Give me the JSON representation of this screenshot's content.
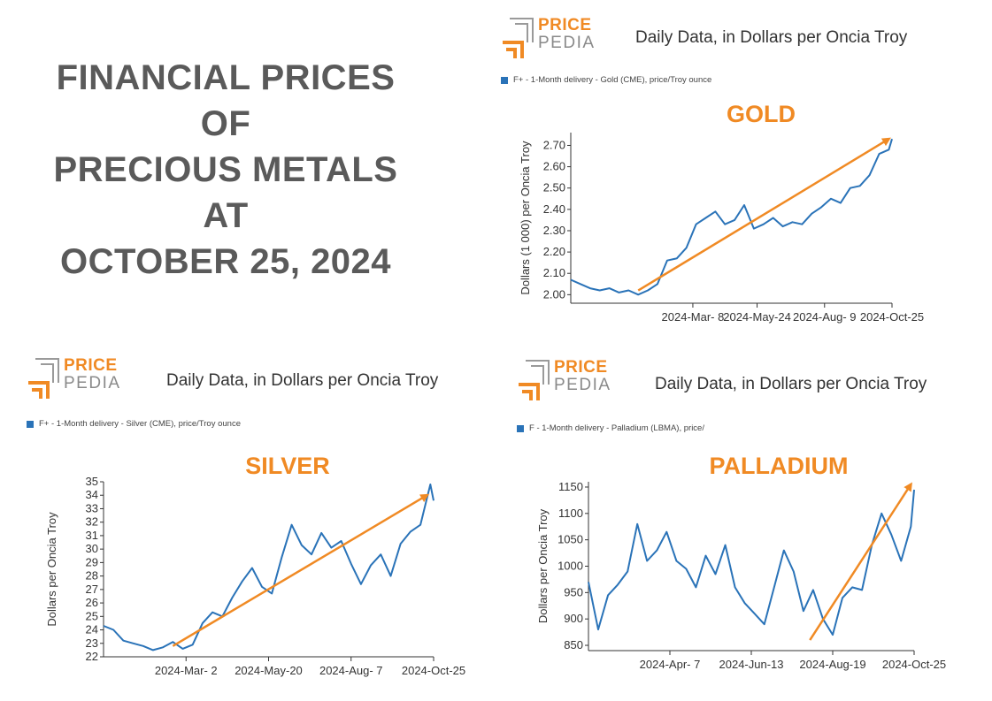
{
  "main_title": [
    "FINANCIAL PRICES",
    "OF",
    "PRECIOUS METALS",
    "AT",
    "OCTOBER 25, 2024"
  ],
  "colors": {
    "series": "#2a73b8",
    "arrow": "#f08a24",
    "title": "#5a5a5a",
    "accent": "#f08a24"
  },
  "logo": {
    "price": "PRICE",
    "pedia": "PEDIA"
  },
  "panels": {
    "gold": {
      "subtitle": "Daily Data, in Dollars per Oncia Troy",
      "legend": "F+ - 1-Month delivery - Gold (CME), price/Troy ounce",
      "label": "GOLD"
    },
    "silver": {
      "subtitle": "Daily Data, in Dollars per Oncia Troy",
      "legend": "F+ - 1-Month delivery - Silver (CME), price/Troy ounce",
      "label": "SILVER"
    },
    "palladium": {
      "subtitle": "Daily Data, in Dollars per Oncia Troy",
      "legend": "F - 1-Month delivery - Palladium (LBMA), price/",
      "label": "PALLADIUM"
    }
  },
  "chart_data": [
    {
      "id": "gold",
      "type": "line",
      "ylabel": "Dollars (1 000) per Oncia Troy",
      "ylim": [
        1.96,
        2.76
      ],
      "yticks": [
        "2.00",
        "2.10",
        "2.20",
        "2.30",
        "2.40",
        "2.50",
        "2.60",
        "2.70"
      ],
      "ytick_values": [
        2.0,
        2.1,
        2.2,
        2.3,
        2.4,
        2.5,
        2.6,
        2.7
      ],
      "xticks": [
        "2024-Mar- 8",
        "2024-May-24",
        "2024-Aug- 9",
        "2024-Oct-25"
      ],
      "xtick_values": [
        0.38,
        0.58,
        0.79,
        1.0
      ],
      "series": [
        {
          "x": [
            0.0,
            0.03,
            0.06,
            0.09,
            0.12,
            0.15,
            0.18,
            0.21,
            0.24,
            0.27,
            0.3,
            0.33,
            0.36,
            0.39,
            0.42,
            0.45,
            0.48,
            0.51,
            0.54,
            0.57,
            0.6,
            0.63,
            0.66,
            0.69,
            0.72,
            0.75,
            0.78,
            0.81,
            0.84,
            0.87,
            0.9,
            0.93,
            0.96,
            0.99,
            1.0
          ],
          "values": [
            2.07,
            2.05,
            2.03,
            2.02,
            2.03,
            2.01,
            2.02,
            2.0,
            2.02,
            2.05,
            2.16,
            2.17,
            2.22,
            2.33,
            2.36,
            2.39,
            2.33,
            2.35,
            2.42,
            2.31,
            2.33,
            2.36,
            2.32,
            2.34,
            2.33,
            2.38,
            2.41,
            2.45,
            2.43,
            2.5,
            2.51,
            2.56,
            2.66,
            2.68,
            2.73
          ]
        }
      ],
      "trend": {
        "from": [
          0.21,
          2.02
        ],
        "to": [
          0.99,
          2.73
        ]
      }
    },
    {
      "id": "silver",
      "type": "line",
      "ylabel": "Dollars per Oncia Troy",
      "ylim": [
        22,
        35
      ],
      "yticks": [
        "22",
        "23",
        "24",
        "25",
        "26",
        "27",
        "28",
        "29",
        "30",
        "31",
        "32",
        "33",
        "34",
        "35"
      ],
      "ytick_values": [
        22,
        23,
        24,
        25,
        26,
        27,
        28,
        29,
        30,
        31,
        32,
        33,
        34,
        35
      ],
      "xticks": [
        "2024-Mar- 2",
        "2024-May-20",
        "2024-Aug- 7",
        "2024-Oct-25"
      ],
      "xtick_values": [
        0.25,
        0.5,
        0.75,
        1.0
      ],
      "series": [
        {
          "x": [
            0.0,
            0.03,
            0.06,
            0.09,
            0.12,
            0.15,
            0.18,
            0.21,
            0.24,
            0.27,
            0.3,
            0.33,
            0.36,
            0.39,
            0.42,
            0.45,
            0.48,
            0.51,
            0.54,
            0.57,
            0.6,
            0.63,
            0.66,
            0.69,
            0.72,
            0.75,
            0.78,
            0.81,
            0.84,
            0.87,
            0.9,
            0.93,
            0.96,
            0.99,
            1.0
          ],
          "values": [
            24.3,
            24.0,
            23.2,
            23.0,
            22.8,
            22.5,
            22.7,
            23.1,
            22.6,
            22.9,
            24.5,
            25.3,
            25.0,
            26.4,
            27.6,
            28.6,
            27.2,
            26.7,
            29.4,
            31.8,
            30.3,
            29.6,
            31.2,
            30.1,
            30.6,
            28.9,
            27.4,
            28.8,
            29.6,
            28.0,
            30.4,
            31.3,
            31.8,
            34.8,
            33.6
          ]
        }
      ],
      "trend": {
        "from": [
          0.21,
          22.8
        ],
        "to": [
          0.98,
          34.0
        ]
      }
    },
    {
      "id": "palladium",
      "type": "line",
      "ylabel": "Dollars per Oncia Troy",
      "ylim": [
        840,
        1160
      ],
      "yticks": [
        "850",
        "900",
        "950",
        "1000",
        "1050",
        "1100",
        "1150"
      ],
      "ytick_values": [
        850,
        900,
        950,
        1000,
        1050,
        1100,
        1150
      ],
      "xticks": [
        "2024-Apr- 7",
        "2024-Jun-13",
        "2024-Aug-19",
        "2024-Oct-25"
      ],
      "xtick_values": [
        0.25,
        0.5,
        0.75,
        1.0
      ],
      "series": [
        {
          "x": [
            0.0,
            0.03,
            0.06,
            0.09,
            0.12,
            0.15,
            0.18,
            0.21,
            0.24,
            0.27,
            0.3,
            0.33,
            0.36,
            0.39,
            0.42,
            0.45,
            0.48,
            0.51,
            0.54,
            0.57,
            0.6,
            0.63,
            0.66,
            0.69,
            0.72,
            0.75,
            0.78,
            0.81,
            0.84,
            0.87,
            0.9,
            0.93,
            0.96,
            0.99,
            1.0
          ],
          "values": [
            970,
            880,
            945,
            965,
            990,
            1080,
            1010,
            1030,
            1065,
            1010,
            995,
            960,
            1020,
            985,
            1040,
            960,
            930,
            910,
            890,
            960,
            1030,
            990,
            915,
            955,
            900,
            870,
            940,
            960,
            955,
            1040,
            1100,
            1060,
            1010,
            1075,
            1145
          ]
        }
      ],
      "trend": {
        "from": [
          0.68,
          860
        ],
        "to": [
          0.99,
          1155
        ]
      }
    }
  ]
}
